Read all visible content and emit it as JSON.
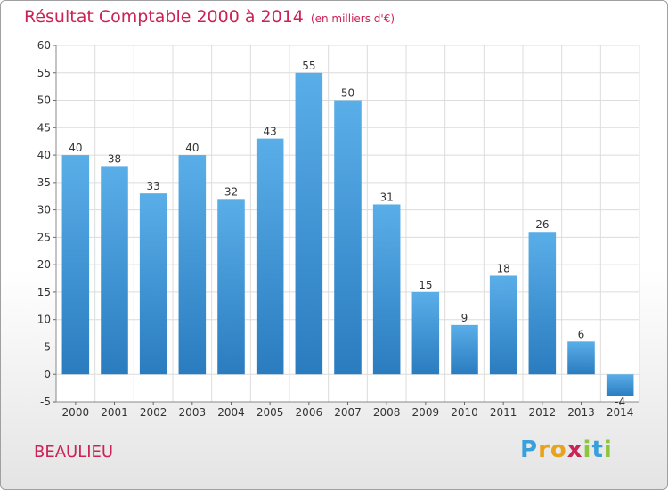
{
  "header": {
    "title": "Résultat Comptable 2000 à 2014",
    "subtitle": "(en milliers d'€)"
  },
  "footer": {
    "town": "BEAULIEU",
    "logo": {
      "text": "Proxiti",
      "letters": [
        {
          "ch": "P",
          "color": "#3aa0dc"
        },
        {
          "ch": "r",
          "color": "#e8a21c"
        },
        {
          "ch": "o",
          "color": "#e8a21c"
        },
        {
          "ch": "x",
          "color": "#cc2255"
        },
        {
          "ch": "i",
          "color": "#8cc63f"
        },
        {
          "ch": "t",
          "color": "#3aa0dc"
        },
        {
          "ch": "i",
          "color": "#8cc63f"
        }
      ]
    }
  },
  "chart_data": {
    "type": "bar",
    "title": "Résultat Comptable 2000 à 2014",
    "subtitle": "(en milliers d'€)",
    "categories": [
      "2000",
      "2001",
      "2002",
      "2003",
      "2004",
      "2005",
      "2006",
      "2007",
      "2008",
      "2009",
      "2010",
      "2011",
      "2012",
      "2013",
      "2014"
    ],
    "values": [
      40,
      38,
      33,
      40,
      32,
      43,
      55,
      50,
      31,
      15,
      9,
      18,
      26,
      6,
      -4
    ],
    "value_labels": [
      "40",
      "38",
      "33",
      "40",
      "32",
      "43",
      "55",
      "50",
      "31",
      "15",
      "9",
      "18",
      "26",
      "6",
      "-4"
    ],
    "yticks": [
      -5,
      0,
      5,
      10,
      15,
      20,
      25,
      30,
      35,
      40,
      45,
      50,
      55,
      60
    ],
    "ylim": [
      -5,
      60
    ],
    "xlabel": "",
    "ylabel": "",
    "grid": true,
    "bar_color_top": "#5aaee8",
    "bar_color_bottom": "#2a7cbf",
    "grid_color": "#dcdcdc"
  }
}
